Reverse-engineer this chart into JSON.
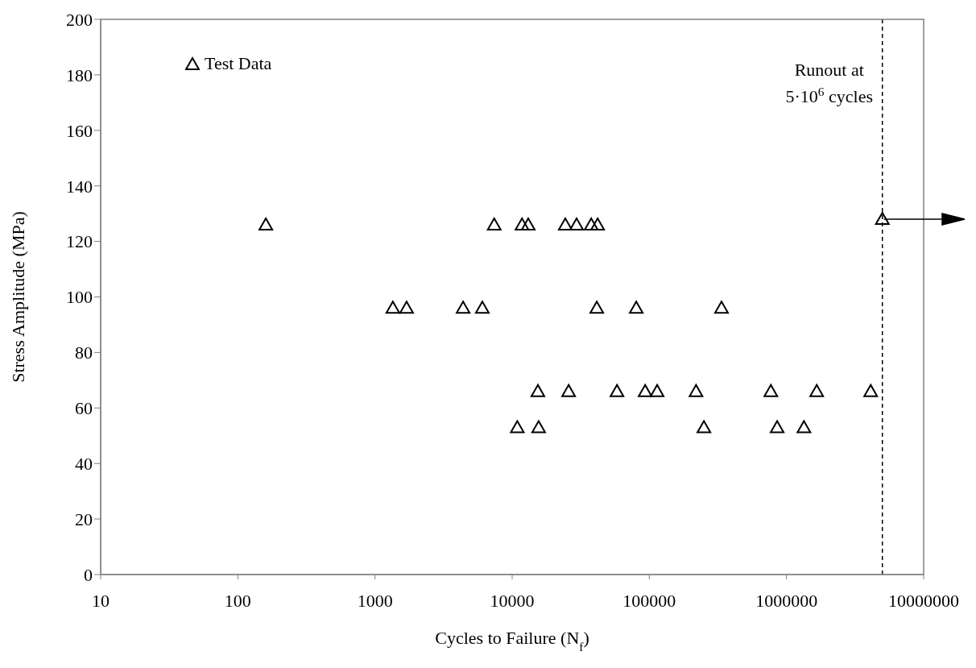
{
  "chart_data": {
    "type": "scatter",
    "xlabel": "Cycles to Failure (N$_{f}$)",
    "ylabel": "Stress Amplitude (MPa)",
    "x": [
      160,
      7400,
      11800,
      13100,
      24400,
      29500,
      37700,
      42000,
      5000000,
      1350,
      1700,
      4390,
      6060,
      41400,
      80300,
      336000,
      15400,
      25800,
      58100,
      93200,
      114000,
      219000,
      769000,
      1660000,
      4110000,
      10900,
      15600,
      250000,
      855000,
      1340000
    ],
    "series": [
      {
        "name": "Test Data",
        "color": "#000000",
        "values": [
          126,
          126,
          126,
          126,
          126,
          126,
          126,
          126,
          128,
          96,
          96,
          96,
          96,
          96,
          96,
          96,
          66,
          66,
          66,
          66,
          66,
          66,
          66,
          66,
          66,
          53,
          53,
          53,
          53,
          53
        ]
      }
    ],
    "xlim": [
      10,
      10000000
    ],
    "xticks": [
      10,
      100,
      1000,
      10000,
      100000,
      1000000,
      10000000
    ],
    "ylim": [
      0,
      200
    ],
    "yticks": [
      0,
      20,
      40,
      60,
      80,
      100,
      120,
      140,
      160,
      180,
      200
    ],
    "log": "x",
    "legend": "top left",
    "marker": "triangle",
    "ref_lines": [
      {
        "axis": "x",
        "value": 5000000,
        "label": "Runout at 5·10$^{6}$ cycles",
        "line_style": "dashed",
        "color": "#000000"
      }
    ]
  }
}
